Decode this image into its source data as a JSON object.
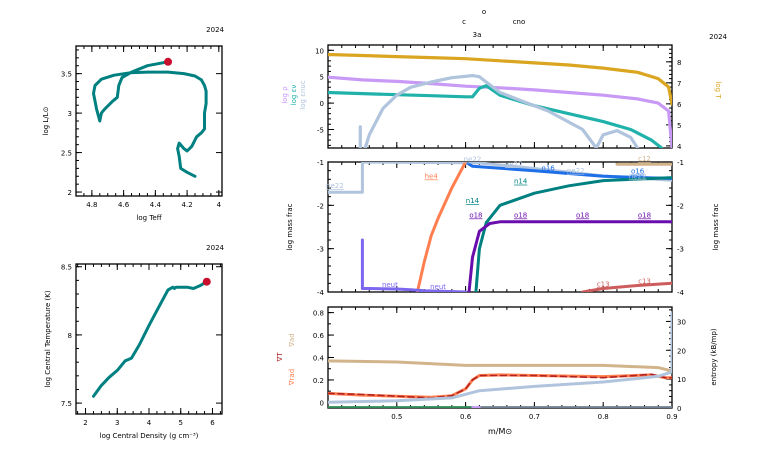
{
  "chart_data": [
    {
      "id": "hr",
      "type": "line",
      "title": "2024",
      "xlabel": "log Teff",
      "ylabel": "log L/L⊙",
      "xlim": [
        4.9,
        3.98
      ],
      "ylim": [
        1.95,
        3.85
      ],
      "xticks": [
        4.8,
        4.6,
        4.4,
        4.2,
        4.0
      ],
      "xtick_labels": [
        "4.8",
        "4.6",
        "4.4",
        "4.2",
        "4"
      ],
      "yticks": [
        2.0,
        2.5,
        3.0,
        3.5
      ],
      "ytick_labels": [
        "2",
        "2.5",
        "3",
        "3.5"
      ],
      "line_color": "#008080",
      "marker_color": "#c8102e",
      "x": [
        4.15,
        4.2,
        4.24,
        4.25,
        4.26,
        4.25,
        4.22,
        4.2,
        4.17,
        4.14,
        4.11,
        4.09,
        4.09,
        4.08,
        4.08,
        4.09,
        4.11,
        4.15,
        4.22,
        4.32,
        4.45,
        4.56,
        4.66,
        4.74,
        4.78,
        4.79,
        4.77,
        4.75,
        4.74,
        4.72,
        4.67,
        4.64,
        4.63,
        4.61,
        4.55,
        4.45,
        4.32
      ],
      "y": [
        2.2,
        2.25,
        2.3,
        2.45,
        2.55,
        2.62,
        2.55,
        2.52,
        2.58,
        2.7,
        2.75,
        2.8,
        3.0,
        3.12,
        3.28,
        3.35,
        3.42,
        3.47,
        3.5,
        3.52,
        3.52,
        3.51,
        3.48,
        3.43,
        3.35,
        3.25,
        3.05,
        2.9,
        3.0,
        3.05,
        3.15,
        3.2,
        3.35,
        3.45,
        3.52,
        3.6,
        3.65
      ],
      "marker": {
        "x": 4.32,
        "y": 3.65
      }
    },
    {
      "id": "center",
      "type": "line",
      "title": "2024",
      "xlabel": "log Central Density (g cm⁻³)",
      "ylabel": "log Central Temperature (K)",
      "xlim": [
        1.7,
        6.3
      ],
      "ylim": [
        7.42,
        8.52
      ],
      "xticks": [
        2,
        3,
        4,
        5,
        6
      ],
      "xtick_labels": [
        "2",
        "3",
        "4",
        "5",
        "6"
      ],
      "yticks": [
        7.5,
        8.0,
        8.5
      ],
      "ytick_labels": [
        "7.5",
        "8",
        "8.5"
      ],
      "line_color": "#008080",
      "marker_color": "#c8102e",
      "x": [
        2.25,
        2.5,
        2.75,
        3.0,
        3.25,
        3.35,
        3.45,
        3.7,
        4.0,
        4.3,
        4.6,
        4.75,
        4.8,
        4.85,
        5.0,
        5.2,
        5.4,
        5.6,
        5.82
      ],
      "y": [
        7.55,
        7.63,
        7.69,
        7.74,
        7.81,
        7.82,
        7.83,
        7.93,
        8.07,
        8.2,
        8.33,
        8.35,
        8.34,
        8.35,
        8.35,
        8.35,
        8.34,
        8.36,
        8.39
      ],
      "marker": {
        "x": 5.82,
        "y": 8.39
      }
    },
    {
      "id": "structure",
      "type": "line",
      "title": "2024",
      "header_labels": [
        "c",
        "o",
        "3a",
        "cno"
      ],
      "xlim": [
        0.4,
        0.9
      ],
      "ylabel_left": [
        "log ρ",
        "log εν",
        "log εnuc"
      ],
      "ylabel_right": "log T",
      "ylim_left": [
        -8.5,
        11
      ],
      "yticks_left": [
        -5,
        0,
        5,
        10
      ],
      "ylim_right": [
        3.9,
        8.8
      ],
      "yticks_right": [
        4,
        5,
        6,
        7,
        8
      ],
      "series": [
        {
          "name": "log T",
          "axis": "right",
          "color": "#daa520",
          "x": [
            0.4,
            0.45,
            0.5,
            0.55,
            0.6,
            0.65,
            0.7,
            0.75,
            0.8,
            0.85,
            0.88,
            0.895,
            0.9
          ],
          "y": [
            8.35,
            8.3,
            8.25,
            8.2,
            8.15,
            8.05,
            7.95,
            7.85,
            7.7,
            7.5,
            7.2,
            6.8,
            6.0
          ]
        },
        {
          "name": "log ρ",
          "axis": "left",
          "color": "#c899f5",
          "x": [
            0.4,
            0.45,
            0.5,
            0.55,
            0.6,
            0.65,
            0.7,
            0.75,
            0.8,
            0.85,
            0.88,
            0.895,
            0.9
          ],
          "y": [
            4.9,
            4.4,
            4.1,
            3.7,
            3.2,
            2.9,
            2.5,
            2.0,
            1.5,
            0.8,
            0.0,
            -1.5,
            -8.5
          ]
        },
        {
          "name": "log εν",
          "axis": "left",
          "color": "#20b2aa",
          "x": [
            0.4,
            0.5,
            0.55,
            0.6,
            0.61,
            0.62,
            0.63,
            0.65,
            0.7,
            0.75,
            0.8,
            0.84,
            0.87,
            0.885
          ],
          "y": [
            2.0,
            1.6,
            1.4,
            1.2,
            1.2,
            2.8,
            3.3,
            1.5,
            -0.5,
            -2.0,
            -3.5,
            -5.0,
            -7.0,
            -8.5
          ]
        },
        {
          "name": "log εnuc",
          "axis": "left",
          "color": "#b0c4de",
          "x": [
            0.454,
            0.46,
            0.48,
            0.5,
            0.52,
            0.55,
            0.58,
            0.61,
            0.62,
            0.63,
            0.65,
            0.68,
            0.72,
            0.77,
            0.79,
            0.8,
            0.82,
            0.84,
            0.85
          ],
          "y": [
            -8.5,
            -6.0,
            -1.0,
            1.5,
            3.0,
            4.0,
            4.8,
            5.2,
            5.0,
            4.0,
            2.0,
            0.5,
            -1.5,
            -5.0,
            -8.5,
            -6.0,
            -5.2,
            -6.5,
            -8.5
          ]
        },
        {
          "name": "log εnuc spike",
          "axis": "left",
          "color": "#b0c4de",
          "x": [
            0.447,
            0.447
          ],
          "y": [
            -8.5,
            -4.5
          ]
        }
      ]
    },
    {
      "id": "abundances",
      "type": "line",
      "xlim": [
        0.4,
        0.9
      ],
      "ylabel": "log mass frac",
      "ylim": [
        -4,
        -1
      ],
      "yticks": [
        -4,
        -3,
        -2,
        -1
      ],
      "series": [
        {
          "name": "ne22",
          "color": "#b0c4de",
          "x": [
            0.4,
            0.45,
            0.45,
            0.62,
            0.7,
            0.8,
            0.9
          ],
          "y": [
            -1.7,
            -1.7,
            -1.0,
            -1.02,
            -1.15,
            -1.32,
            -1.42
          ],
          "labels": [
            {
              "text": "ne22",
              "x": 0.41,
              "y": -1.6
            },
            {
              "text": "ne22",
              "x": 0.61,
              "y": -0.99
            },
            {
              "text": "ne22",
              "x": 0.67,
              "y": -1.1
            },
            {
              "text": "ne22",
              "x": 0.76,
              "y": -1.25
            },
            {
              "text": "ne22",
              "x": 0.85,
              "y": -1.38
            }
          ]
        },
        {
          "name": "o16",
          "color": "#1e6fe8",
          "x": [
            0.6,
            0.61,
            0.7,
            0.8,
            0.9
          ],
          "y": [
            -1.0,
            -1.1,
            -1.2,
            -1.33,
            -1.38
          ],
          "labels": [
            {
              "text": "o16",
              "x": 0.72,
              "y": -1.2
            },
            {
              "text": "o16",
              "x": 0.85,
              "y": -1.27
            }
          ]
        },
        {
          "name": "c12",
          "color": "#d2b48c",
          "x": [
            0.82,
            0.9
          ],
          "y": [
            -1.05,
            -1.05
          ],
          "labels": [
            {
              "text": "c12",
              "x": 0.86,
              "y": -0.98
            }
          ]
        },
        {
          "name": "n14",
          "color": "#008080",
          "x": [
            0.615,
            0.62,
            0.63,
            0.65,
            0.7,
            0.75,
            0.8,
            0.9
          ],
          "y": [
            -4.0,
            -3.0,
            -2.4,
            -2.0,
            -1.72,
            -1.55,
            -1.43,
            -1.36
          ],
          "labels": [
            {
              "text": "n14",
              "x": 0.61,
              "y": -1.95
            },
            {
              "text": "n14",
              "x": 0.68,
              "y": -1.5
            }
          ]
        },
        {
          "name": "o18",
          "color": "#6a0dad",
          "x": [
            0.605,
            0.61,
            0.62,
            0.635,
            0.65,
            0.9
          ],
          "y": [
            -4.0,
            -3.2,
            -2.6,
            -2.42,
            -2.38,
            -2.38
          ],
          "labels": [
            {
              "text": "o18",
              "x": 0.615,
              "y": -2.28
            },
            {
              "text": "o18",
              "x": 0.68,
              "y": -2.28
            },
            {
              "text": "o18",
              "x": 0.77,
              "y": -2.28
            },
            {
              "text": "o18",
              "x": 0.86,
              "y": -2.28
            }
          ]
        },
        {
          "name": "he4",
          "color": "#ff7f50",
          "x": [
            0.53,
            0.54,
            0.55,
            0.56,
            0.58,
            0.6
          ],
          "y": [
            -4.0,
            -3.3,
            -2.7,
            -2.3,
            -1.6,
            -1.0
          ],
          "labels": [
            {
              "text": "he4",
              "x": 0.55,
              "y": -1.38
            }
          ]
        },
        {
          "name": "neut",
          "color": "#7b68ee",
          "x": [
            0.45,
            0.45,
            0.46,
            0.5,
            0.52,
            0.54,
            0.6
          ],
          "y": [
            -2.8,
            -3.92,
            -3.92,
            -3.93,
            -3.95,
            -3.97,
            -4.0
          ],
          "labels": [
            {
              "text": "neut",
              "x": 0.49,
              "y": -3.88
            },
            {
              "text": "neut",
              "x": 0.56,
              "y": -3.93
            }
          ]
        },
        {
          "name": "c13",
          "color": "#cd5c5c",
          "x": [
            0.77,
            0.8,
            0.85,
            0.9
          ],
          "y": [
            -4.0,
            -3.92,
            -3.85,
            -3.8
          ],
          "labels": [
            {
              "text": "c13",
              "x": 0.8,
              "y": -3.87
            },
            {
              "text": "c13",
              "x": 0.86,
              "y": -3.8
            }
          ]
        }
      ]
    },
    {
      "id": "gradients",
      "type": "line",
      "xlim": [
        0.4,
        0.9
      ],
      "xlabel": "m/M⊙",
      "xticks": [
        0.5,
        0.6,
        0.7,
        0.8,
        0.9
      ],
      "xtick_labels": [
        "0.5",
        "0.6",
        "0.7",
        "0.8",
        "0.9"
      ],
      "ylabel_left": [
        "∇ad",
        "∇T",
        "∇rad"
      ],
      "ylim_left": [
        -0.05,
        0.85
      ],
      "yticks_left": [
        0,
        0.2,
        0.4,
        0.6,
        0.8
      ],
      "ylabel_right": "entropy (kB/mp)",
      "ylim_right": [
        0,
        35
      ],
      "yticks_right": [
        0,
        10,
        20,
        30
      ],
      "series": [
        {
          "name": "∇ad",
          "axis": "left",
          "color": "#d2b48c",
          "x": [
            0.4,
            0.5,
            0.6,
            0.7,
            0.8,
            0.88,
            0.9
          ],
          "y": [
            0.37,
            0.36,
            0.33,
            0.33,
            0.33,
            0.31,
            0.28
          ]
        },
        {
          "name": "∇rad",
          "axis": "left",
          "color": "#ff7f50",
          "x": [
            0.4,
            0.45,
            0.5,
            0.55,
            0.58,
            0.6,
            0.61,
            0.62,
            0.65,
            0.7,
            0.8,
            0.87,
            0.89,
            0.9
          ],
          "y": [
            0.08,
            0.065,
            0.055,
            0.045,
            0.06,
            0.12,
            0.2,
            0.24,
            0.245,
            0.24,
            0.23,
            0.245,
            0.22,
            0.22
          ]
        },
        {
          "name": "∇T",
          "axis": "left",
          "color": "#b22222",
          "dashed": true,
          "x": [
            0.4,
            0.45,
            0.5,
            0.55,
            0.58,
            0.6,
            0.61,
            0.62,
            0.65,
            0.7,
            0.8,
            0.87,
            0.89,
            0.9
          ],
          "y": [
            0.08,
            0.07,
            0.055,
            0.04,
            0.06,
            0.12,
            0.2,
            0.24,
            0.24,
            0.24,
            0.22,
            0.25,
            0.22,
            0.22
          ]
        },
        {
          "name": "entropy",
          "axis": "right",
          "color": "#b0c4de",
          "x": [
            0.4,
            0.5,
            0.58,
            0.62,
            0.7,
            0.8,
            0.88,
            0.9,
            0.9
          ],
          "y": [
            2.0,
            2.5,
            3.5,
            6.0,
            7.5,
            9.0,
            11.0,
            12.5,
            33.0
          ]
        },
        {
          "name": "baseline-green",
          "axis": "left",
          "color": "#2e8b57",
          "x": [
            0.4,
            0.61
          ],
          "y": [
            -0.045,
            -0.045
          ]
        },
        {
          "name": "baseline-gray",
          "axis": "left",
          "color": "#708090",
          "x": [
            0.62,
            0.9
          ],
          "y": [
            -0.045,
            -0.045
          ]
        },
        {
          "name": "baseline-violet",
          "axis": "left",
          "color": "#c899f5",
          "x": [
            0.61,
            0.62
          ],
          "y": [
            -0.045,
            -0.045
          ]
        }
      ]
    }
  ]
}
